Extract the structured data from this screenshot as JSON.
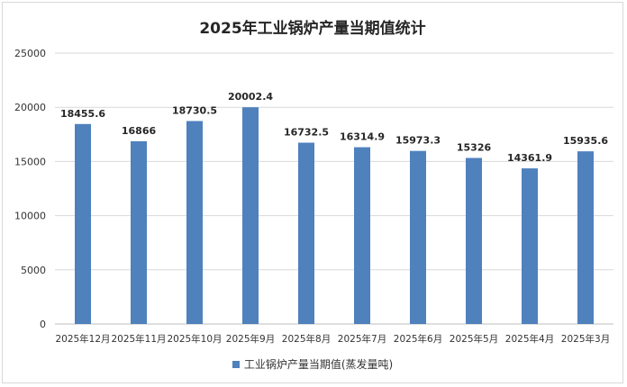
{
  "chart_data": {
    "type": "bar",
    "title": "2025年工业锅炉产量当期值统计",
    "categories": [
      "2025年12月",
      "2025年11月",
      "2025年10月",
      "2025年9月",
      "2025年8月",
      "2025年7月",
      "2025年6月",
      "2025年5月",
      "2025年4月",
      "2025年3月"
    ],
    "series": [
      {
        "name": "工业锅炉产量当期值(蒸发量吨)",
        "values": [
          18455.6,
          16866,
          18730.5,
          20002.4,
          16732.5,
          16314.9,
          15973.3,
          15326,
          14361.9,
          15935.6
        ],
        "labels": [
          "18455.6",
          "16866",
          "18730.5",
          "20002.4",
          "16732.5",
          "16314.9",
          "15973.3",
          "15326",
          "14361.9",
          "15935.6"
        ],
        "color": "#4f81bd"
      }
    ],
    "ylim": [
      0,
      25000
    ],
    "yticks": [
      0,
      5000,
      10000,
      15000,
      20000,
      25000
    ],
    "grid": true,
    "legend_position": "bottom"
  }
}
